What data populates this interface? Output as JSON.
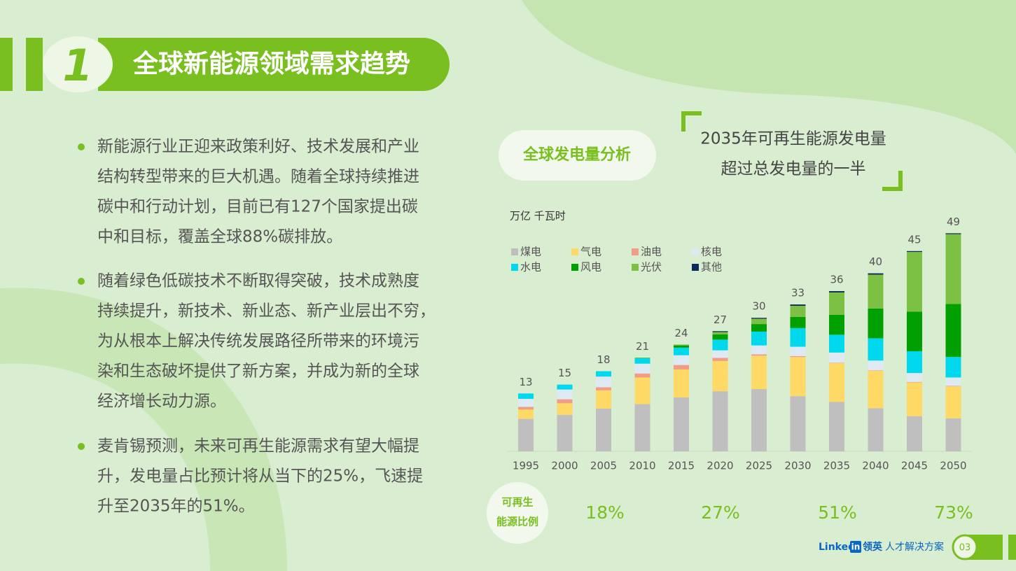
{
  "header": {
    "number": "1",
    "title": "全球新能源领域需求趋势"
  },
  "bullets": [
    [
      "新能源行业正迎来政策利好、技术发展和产业",
      "结构转型带来的巨大机遇。随着全球持续推进",
      "碳中和行动计划，目前已有127个国家提出碳",
      "中和目标，覆盖全球88%碳排放。"
    ],
    [
      "随着绿色低碳技术不断取得突破，技术成熟度",
      "持续提升，新技术、新业态、新产业层出不穷，",
      "为从根本上解决传统发展路径所带来的环境污",
      "染和生态破坏提供了新方案，并成为新的全球",
      "经济增长动力源。"
    ],
    [
      "麦肯锡预测，未来可再生能源需求有望大幅提",
      "升，发电量占比预计将从当下的25%，飞速提",
      "升至2035年的51%。"
    ]
  ],
  "chart_badge": "全球发电量分析",
  "headline": [
    "2035年可再生能源发电量",
    "超过总发电量的一半"
  ],
  "chart_data": {
    "type": "bar",
    "stacked": true,
    "unit_label": "万亿 千瓦时",
    "categories": [
      "1995",
      "2000",
      "2005",
      "2010",
      "2015",
      "2020",
      "2025",
      "2030",
      "2035",
      "2040",
      "2045",
      "2050"
    ],
    "series": [
      {
        "name": "煤电",
        "color": "#bfbfbf",
        "values": [
          7.3,
          8.2,
          9.6,
          10.6,
          12.1,
          13.5,
          14.0,
          12.4,
          11.1,
          9.7,
          7.9,
          7.4
        ]
      },
      {
        "name": "气电",
        "color": "#ffd966",
        "values": [
          2.1,
          2.6,
          4.1,
          6.0,
          6.3,
          6.8,
          7.5,
          8.8,
          8.7,
          8.4,
          7.6,
          7.2
        ]
      },
      {
        "name": "油电",
        "color": "#f19c84",
        "values": [
          0.6,
          0.9,
          0.7,
          0.9,
          1.0,
          0.7,
          0.3,
          0.2,
          0.1,
          0.1,
          0.1,
          0.1
        ]
      },
      {
        "name": "核电",
        "color": "#deeaf3",
        "values": [
          1.8,
          2.2,
          2.4,
          2.2,
          2.2,
          1.7,
          2.0,
          2.1,
          2.3,
          2.2,
          2.0,
          1.9
        ]
      },
      {
        "name": "水电",
        "color": "#00d8ee",
        "values": [
          1.2,
          1.1,
          1.2,
          1.2,
          1.7,
          2.4,
          3.1,
          4.2,
          4.0,
          5.0,
          4.9,
          4.6
        ]
      },
      {
        "name": "风电",
        "color": "#00a000",
        "values": [
          0,
          0,
          0,
          0.1,
          0.5,
          1.2,
          1.7,
          2.5,
          4.5,
          6.7,
          8.9,
          11.9
        ]
      },
      {
        "name": "光伏",
        "color": "#7cc143",
        "values": [
          0,
          0,
          0,
          0,
          0.2,
          0.5,
          1.2,
          2.5,
          5.0,
          7.6,
          13.4,
          15.7
        ]
      },
      {
        "name": "其他",
        "color": "#0c2a5b",
        "values": [
          0,
          0,
          0,
          0,
          0,
          0.2,
          0.2,
          0.3,
          0.3,
          0.3,
          0.2,
          0.2
        ]
      }
    ],
    "totals": [
      13,
      15,
      18,
      21,
      24,
      27,
      30,
      33,
      36,
      40,
      45,
      49
    ],
    "ylim": [
      0,
      50
    ],
    "legend": true
  },
  "renewable_share": {
    "label": [
      "可再生",
      "能源比例"
    ],
    "values": [
      18,
      27,
      51,
      73
    ],
    "value_labels": [
      "18%",
      "27%",
      "51%",
      "73%"
    ]
  },
  "footer": {
    "brand": "Linked",
    "brand_in": "in",
    "brand_cn": "领英",
    "tagline": "人才解决方案",
    "page": "03"
  }
}
